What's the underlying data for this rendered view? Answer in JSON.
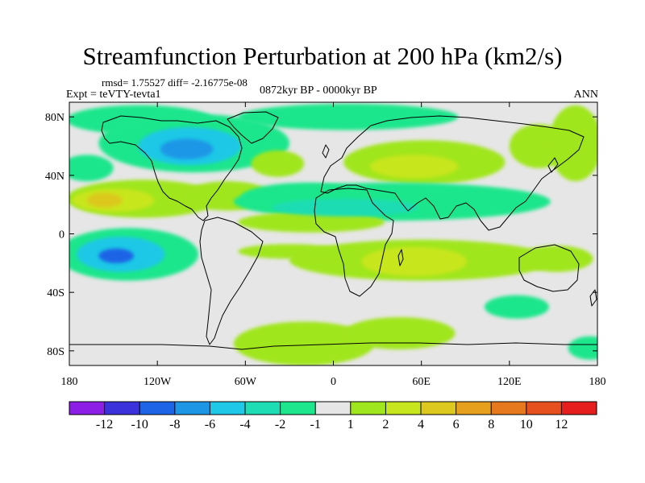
{
  "title": "Streamfunction Perturbation at 200 hPa (km2/s)",
  "stats_text": "rmsd= 1.75527  diff= -2.16775e-08",
  "expt_text": "Expt = teVTY-tevta1",
  "period_text": "0872kyr BP - 0000kyr BP",
  "season_text": "ANN",
  "map": {
    "projection": "cylindrical-equidistant",
    "lon_range": [
      -180,
      180
    ],
    "lat_range": [
      -90,
      90
    ],
    "x_ticks": [
      {
        "value": -180,
        "label": "180"
      },
      {
        "value": -120,
        "label": "120W"
      },
      {
        "value": -60,
        "label": "60W"
      },
      {
        "value": 0,
        "label": "0"
      },
      {
        "value": 60,
        "label": "60E"
      },
      {
        "value": 120,
        "label": "120E"
      },
      {
        "value": 180,
        "label": "180"
      }
    ],
    "y_ticks": [
      {
        "value": 80,
        "label": "80N"
      },
      {
        "value": 40,
        "label": "40N"
      },
      {
        "value": 0,
        "label": "0"
      },
      {
        "value": -40,
        "label": "40S"
      },
      {
        "value": -80,
        "label": "80S"
      }
    ]
  },
  "colorbar": {
    "colors": [
      "#8c1ee6",
      "#3c32dc",
      "#1e64e6",
      "#1e96e6",
      "#1ec8e6",
      "#1edcb4",
      "#1ee68c",
      "#e6e6e6",
      "#a0e61e",
      "#c8e61e",
      "#dcc81e",
      "#e6a01e",
      "#e6781e",
      "#e6501e",
      "#e61e1e"
    ],
    "labels": [
      "-12",
      "-10",
      "-8",
      "-6",
      "-4",
      "-2",
      "-1",
      "1",
      "2",
      "4",
      "6",
      "8",
      "10",
      "12"
    ]
  },
  "anomalies": [
    {
      "name": "N Pacific Arctic",
      "lon": -132,
      "lat": 78,
      "rlon": 50,
      "rlat": 10,
      "level": -1
    },
    {
      "name": "N America low",
      "lon": -95,
      "lat": 62,
      "rlon": 65,
      "rlat": 20,
      "level": -1
    },
    {
      "name": "N America low core",
      "lon": -98,
      "lat": 60,
      "rlon": 35,
      "rlat": 13,
      "level": -3
    },
    {
      "name": "N America low center",
      "lon": -100,
      "lat": 58,
      "rlon": 18,
      "rlat": 7,
      "level": -4
    },
    {
      "name": "NW Pacific low",
      "lon": -168,
      "lat": 45,
      "rlon": 18,
      "rlat": 9,
      "level": -1
    },
    {
      "name": "Subtropical Pacific high",
      "lon": -130,
      "lat": 24,
      "rlon": 52,
      "rlat": 13,
      "level": 1
    },
    {
      "name": "Subtropical Pacific high core",
      "lon": -150,
      "lat": 23,
      "rlon": 28,
      "rlat": 8,
      "level": 2
    },
    {
      "name": "Subtropical Pacific high center",
      "lon": -156,
      "lat": 23,
      "rlon": 12,
      "rlat": 5,
      "level": 3
    },
    {
      "name": "Caribbean high",
      "lon": -72,
      "lat": 26,
      "rlon": 30,
      "rlat": 10,
      "level": 1
    },
    {
      "name": "N Atlantic ridge",
      "lon": -38,
      "lat": 48,
      "rlon": 18,
      "rlat": 9,
      "level": 1
    },
    {
      "name": "Arctic Atlantic low",
      "lon": 10,
      "lat": 80,
      "rlon": 75,
      "rlat": 9,
      "level": -1
    },
    {
      "name": "Eurasia high",
      "lon": 62,
      "lat": 49,
      "rlon": 55,
      "rlat": 15,
      "level": 1
    },
    {
      "name": "Eurasia high core",
      "lon": 55,
      "lat": 46,
      "rlon": 30,
      "rlat": 8,
      "level": 2
    },
    {
      "name": "E Siberia high",
      "lon": 140,
      "lat": 60,
      "rlon": 20,
      "rlat": 15,
      "level": 1
    },
    {
      "name": "NE Pacific high",
      "lon": 165,
      "lat": 62,
      "rlon": 18,
      "rlat": 26,
      "level": 1
    },
    {
      "name": "Africa-Asia low band",
      "lon": 40,
      "lat": 22,
      "rlon": 108,
      "rlat": 13,
      "level": -1
    },
    {
      "name": "Atlantic low",
      "lon": -18,
      "lat": 25,
      "rlon": 45,
      "rlat": 10,
      "level": -1
    },
    {
      "name": "Africa-Asia low core",
      "lon": 8,
      "lat": 18,
      "rlon": 50,
      "rlat": 6,
      "level": -2
    },
    {
      "name": "Mid Atlantic band",
      "lon": -15,
      "lat": 8,
      "rlon": 50,
      "rlat": 7,
      "level": 1
    },
    {
      "name": "S Pacific low",
      "lon": -140,
      "lat": -14,
      "rlon": 48,
      "rlat": 18,
      "level": -1
    },
    {
      "name": "S Pacific low core",
      "lon": -145,
      "lat": -14,
      "rlon": 30,
      "rlat": 12,
      "level": -3
    },
    {
      "name": "S Pacific low center",
      "lon": -148,
      "lat": -15,
      "rlon": 12,
      "rlat": 5,
      "level": -5
    },
    {
      "name": "Southern Africa high",
      "lon": 60,
      "lat": -18,
      "rlon": 90,
      "rlat": 14,
      "level": 1
    },
    {
      "name": "Southern Africa high core",
      "lon": 55,
      "lat": -19,
      "rlon": 36,
      "rlat": 10,
      "level": 2
    },
    {
      "name": "South Atlantic band",
      "lon": -30,
      "lat": -12,
      "rlon": 35,
      "rlat": 5,
      "level": 1
    },
    {
      "name": "Tasman high",
      "lon": 152,
      "lat": -17,
      "rlon": 25,
      "rlat": 9,
      "level": 1
    },
    {
      "name": "Southern Ocean low",
      "lon": 125,
      "lat": -50,
      "rlon": 22,
      "rlat": 8,
      "level": -1
    },
    {
      "name": "Southern Ocean high",
      "lon": -20,
      "lat": -75,
      "rlon": 48,
      "rlat": 15,
      "level": 1
    },
    {
      "name": "Southern Ocean high 2",
      "lon": 45,
      "lat": -68,
      "rlon": 38,
      "rlat": 11,
      "level": 1
    },
    {
      "name": "Southern Ocean high 3",
      "lon": 175,
      "lat": -78,
      "rlon": 15,
      "rlat": 8,
      "level": -1
    }
  ]
}
